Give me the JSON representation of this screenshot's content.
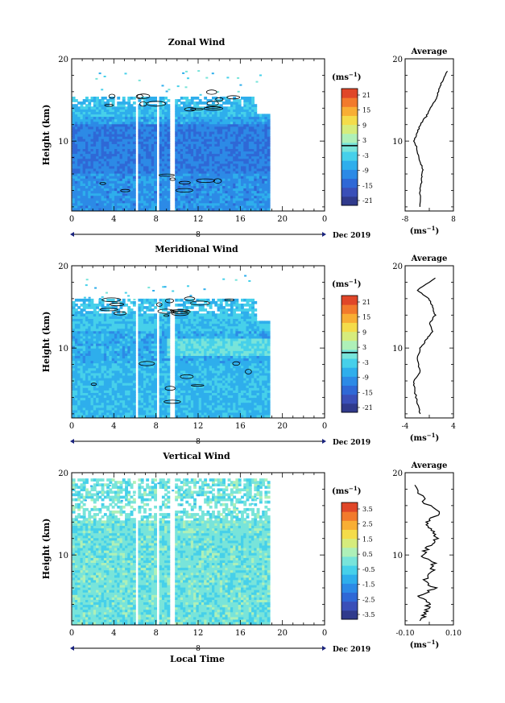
{
  "date_label": "Dec 2019",
  "xaxis_title": "Local Time",
  "x_ticks": [
    "0",
    "4",
    "8",
    "12",
    "16",
    "20",
    "0"
  ],
  "day_marker": "8",
  "palette": [
    "#303a8c",
    "#3a4fb8",
    "#2f68d6",
    "#2c8ae6",
    "#2eaeec",
    "#46d0ea",
    "#78e4da",
    "#aef0b8",
    "#d6ec7c",
    "#f4dc4a",
    "#f8ae34",
    "#f27a2c",
    "#e04628"
  ],
  "colorbar_unit_text": "(ms",
  "colorbar_unit_exp": "−1",
  "avg_unit_text": "(ms",
  "avg_unit_exp": "−1",
  "panels": [
    {
      "title": "Zonal Wind",
      "ylabel": "Height (km)",
      "y_ticks": [
        "20",
        "10"
      ],
      "cbar_labels": [
        "21",
        "15",
        "9",
        "3",
        "-3",
        "-9",
        "-15",
        "-21"
      ],
      "cbar_zero_line": true,
      "avg_title": "Average",
      "avg_y_ticks": [
        "20",
        "10"
      ],
      "avg_x_ticks": [
        "-8",
        "8"
      ],
      "avg_xlim": [
        -8,
        8
      ],
      "kind": "zonal"
    },
    {
      "title": "Meridional Wind",
      "ylabel": "Height (km)",
      "y_ticks": [
        "20",
        "10"
      ],
      "cbar_labels": [
        "21",
        "15",
        "9",
        "3",
        "-3",
        "-9",
        "-15",
        "-21"
      ],
      "cbar_zero_line": true,
      "avg_title": "Average",
      "avg_y_ticks": [
        "20",
        "10"
      ],
      "avg_x_ticks": [
        "-4",
        "4"
      ],
      "avg_xlim": [
        -4,
        4
      ],
      "kind": "meridional"
    },
    {
      "title": "Vertical Wind",
      "ylabel": "Height (km)",
      "y_ticks": [
        "20",
        "10"
      ],
      "cbar_labels": [
        "3.5",
        "2.5",
        "1.5",
        "0.5",
        "-0.5",
        "-1.5",
        "-2.5",
        "-3.5"
      ],
      "cbar_zero_line": false,
      "avg_title": "Average",
      "avg_y_ticks": [
        "20",
        "10"
      ],
      "avg_x_ticks": [
        "-0.10",
        "0.10"
      ],
      "avg_xlim": [
        -0.1,
        0.1
      ],
      "kind": "vertical"
    }
  ],
  "chart_data": [
    {
      "type": "heatmap",
      "title": "Zonal Wind",
      "xlabel": "",
      "ylabel": "Height (km)",
      "xlim": [
        0,
        24
      ],
      "ylim": [
        1.5,
        20
      ],
      "colorbar_range": [
        -24,
        24
      ],
      "unit": "ms^-1",
      "notes_values": "zonal wind mostly -3 to -12 ms^-1 below 14 km; positive contours near 14-16 km",
      "average_profile": {
        "x": [
          -3,
          -3,
          -2.5,
          -2,
          -3,
          -4,
          -5,
          -4,
          -3,
          -1,
          0.5,
          2,
          3,
          4,
          6
        ],
        "y": [
          2,
          4,
          5.5,
          6.5,
          7.5,
          9,
          10,
          11,
          12,
          13,
          14,
          15,
          16,
          17,
          18.5
        ],
        "xlim": [
          -8,
          8
        ]
      }
    },
    {
      "type": "heatmap",
      "title": "Meridional Wind",
      "xlabel": "",
      "ylabel": "Height (km)",
      "xlim": [
        0,
        24
      ],
      "ylim": [
        1.5,
        20
      ],
      "colorbar_range": [
        -24,
        24
      ],
      "unit": "ms^-1",
      "average_profile": {
        "x": [
          -1.5,
          -2,
          -2.5,
          -2.5,
          -1.5,
          -2,
          -1.5,
          -0.5,
          0.5,
          0,
          1,
          0.5,
          0,
          -2,
          1
        ],
        "y": [
          2,
          3.5,
          5,
          6,
          7,
          8.5,
          10,
          11,
          12,
          13,
          14,
          15,
          16,
          17,
          18.5
        ],
        "xlim": [
          -4,
          4
        ]
      }
    },
    {
      "type": "heatmap",
      "title": "Vertical Wind",
      "xlabel": "Local Time",
      "ylabel": "Height (km)",
      "xlim": [
        0,
        24
      ],
      "ylim": [
        1.5,
        20
      ],
      "colorbar_range": [
        -4,
        4
      ],
      "unit": "ms^-1",
      "average_profile": {
        "x": [
          -0.03,
          -0.02,
          0.0,
          -0.04,
          0.02,
          -0.02,
          0.01,
          0.02,
          -0.03,
          0.0,
          0.03,
          0.01,
          -0.01,
          0.04,
          -0.02,
          -0.06
        ],
        "y": [
          2,
          3,
          4,
          5,
          6,
          7,
          8,
          9,
          10,
          11,
          12,
          13,
          14,
          15,
          16.5,
          18.5
        ],
        "xlim": [
          -0.1,
          0.1
        ]
      }
    }
  ]
}
